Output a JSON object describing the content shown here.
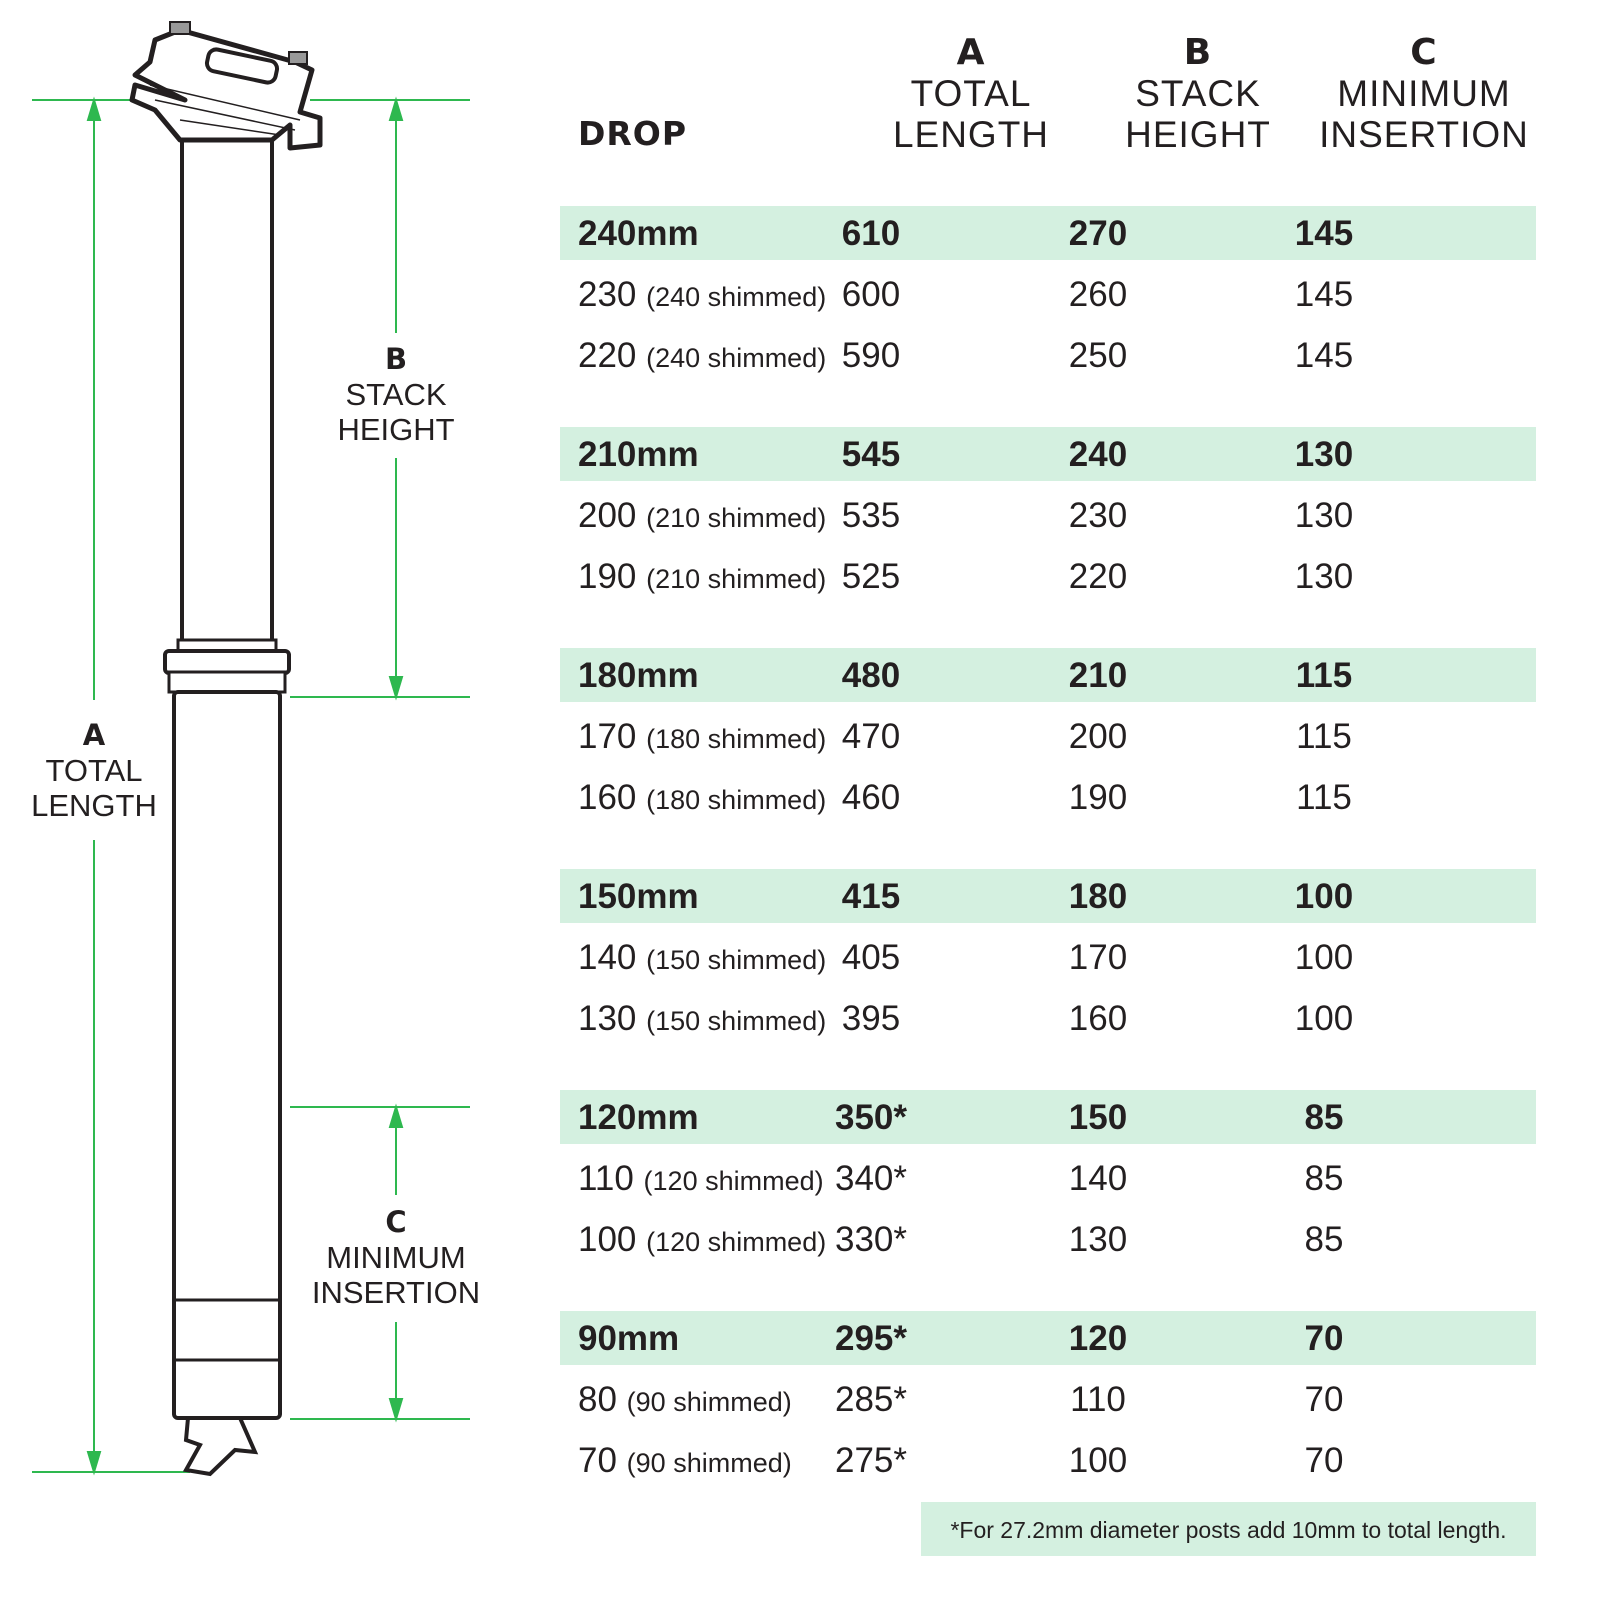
{
  "diagram": {
    "line_color": "#2eb84f",
    "labels": {
      "a": {
        "letter": "A",
        "line1": "TOTAL",
        "line2": "LENGTH"
      },
      "b": {
        "letter": "B",
        "line1": "STACK",
        "line2": "HEIGHT"
      },
      "c": {
        "letter": "C",
        "line1": "MINIMUM",
        "line2": "INSERTION"
      }
    }
  },
  "table": {
    "highlight_color": "#d4f0e0",
    "headers": {
      "drop": "DROP",
      "a": {
        "letter": "A",
        "line1": "TOTAL",
        "line2": "LENGTH"
      },
      "b": {
        "letter": "B",
        "line1": "STACK",
        "line2": "HEIGHT"
      },
      "c": {
        "letter": "C",
        "line1": "MINIMUM",
        "line2": "INSERTION"
      }
    },
    "groups": [
      {
        "rows": [
          {
            "drop": "240mm",
            "note": "",
            "a": "610",
            "b": "270",
            "c": "145"
          },
          {
            "drop": "230",
            "note": "(240 shimmed)",
            "a": "600",
            "b": "260",
            "c": "145"
          },
          {
            "drop": "220",
            "note": "(240 shimmed)",
            "a": "590",
            "b": "250",
            "c": "145"
          }
        ]
      },
      {
        "rows": [
          {
            "drop": "210mm",
            "note": "",
            "a": "545",
            "b": "240",
            "c": "130"
          },
          {
            "drop": "200",
            "note": "(210 shimmed)",
            "a": "535",
            "b": "230",
            "c": "130"
          },
          {
            "drop": "190",
            "note": "(210 shimmed)",
            "a": "525",
            "b": "220",
            "c": "130"
          }
        ]
      },
      {
        "rows": [
          {
            "drop": "180mm",
            "note": "",
            "a": "480",
            "b": "210",
            "c": "115"
          },
          {
            "drop": "170",
            "note": "(180 shimmed)",
            "a": "470",
            "b": "200",
            "c": "115"
          },
          {
            "drop": "160",
            "note": "(180 shimmed)",
            "a": "460",
            "b": "190",
            "c": "115"
          }
        ]
      },
      {
        "rows": [
          {
            "drop": "150mm",
            "note": "",
            "a": "415",
            "b": "180",
            "c": "100"
          },
          {
            "drop": "140",
            "note": "(150 shimmed)",
            "a": "405",
            "b": "170",
            "c": "100"
          },
          {
            "drop": "130",
            "note": "(150 shimmed)",
            "a": "395",
            "b": "160",
            "c": "100"
          }
        ]
      },
      {
        "rows": [
          {
            "drop": "120mm",
            "note": "",
            "a": "350*",
            "b": "150",
            "c": "85"
          },
          {
            "drop": "110",
            "note": "(120 shimmed)",
            "a": "340*",
            "b": "140",
            "c": "85"
          },
          {
            "drop": "100",
            "note": "(120 shimmed)",
            "a": "330*",
            "b": "130",
            "c": "85"
          }
        ]
      },
      {
        "rows": [
          {
            "drop": "90mm",
            "note": "",
            "a": "295*",
            "b": "120",
            "c": "70"
          },
          {
            "drop": "80",
            "note": "(90 shimmed)",
            "a": "285*",
            "b": "110",
            "c": "70"
          },
          {
            "drop": "70",
            "note": "(90 shimmed)",
            "a": "275*",
            "b": "100",
            "c": "70"
          }
        ]
      }
    ],
    "footnote": "*For 27.2mm diameter posts add 10mm to total length."
  }
}
